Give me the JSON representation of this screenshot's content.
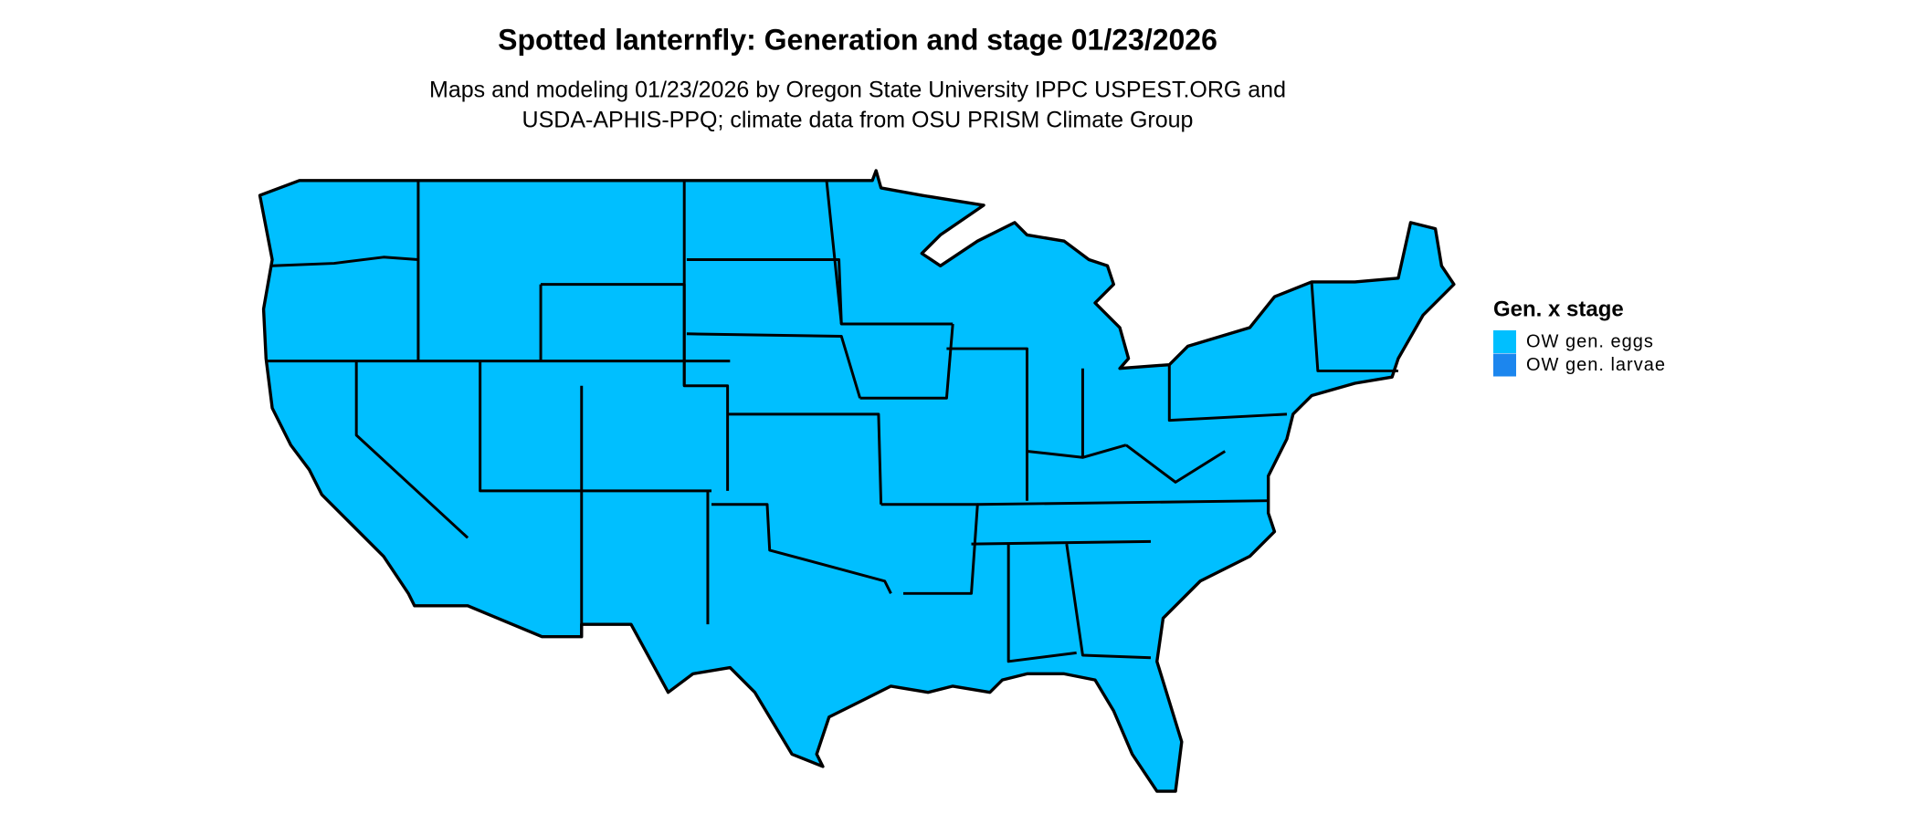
{
  "title": "Spotted lanternfly: Generation and stage 01/23/2026",
  "subtitle": [
    "Maps and modeling 01/23/2026 by Oregon State University IPPC USPEST.ORG and",
    "USDA-APHIS-PPQ; climate data from OSU PRISM Climate Group"
  ],
  "legend": {
    "title": "Gen. x stage",
    "items": [
      {
        "label": "OW gen. eggs",
        "color": "#00bfff"
      },
      {
        "label": "OW gen. larvae",
        "color": "#1c86ee"
      }
    ]
  }
}
